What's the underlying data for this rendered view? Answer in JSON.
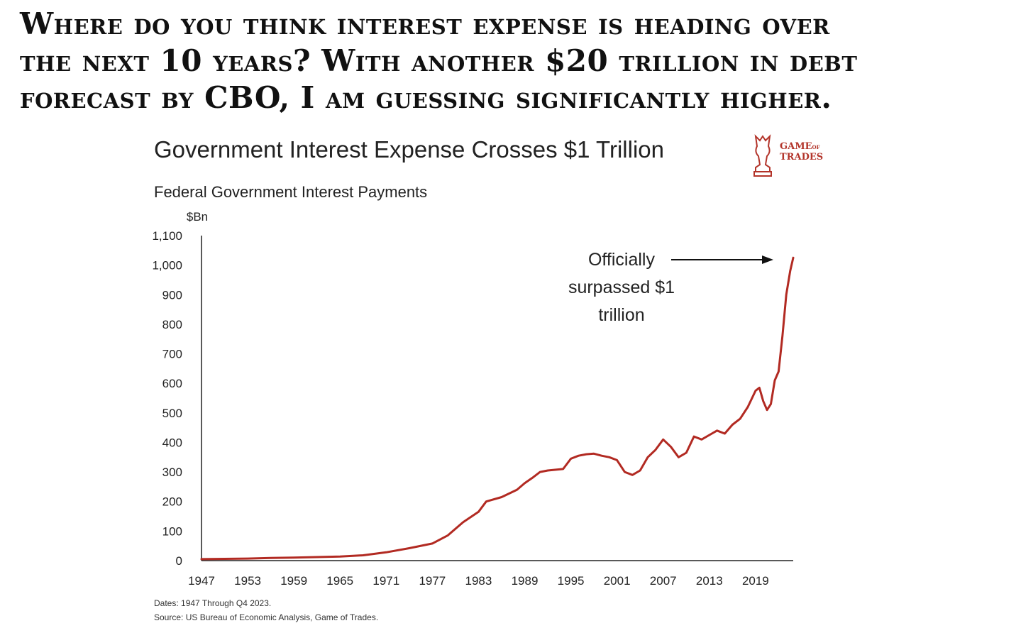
{
  "headline": [
    "Where do you think interest expense is heading over",
    "the next 10 years? With another $20 trillion in debt",
    "forecast by CBO, I am guessing significantly higher."
  ],
  "logo": {
    "line1": "GAME",
    "line1_small": "OF",
    "line2": "TRADES"
  },
  "footnote": {
    "dates": "Dates: 1947 Through Q4 2023.",
    "source": "Source: US Bureau of Economic Analysis, Game of Trades."
  },
  "chart_data": {
    "type": "line",
    "title": "Government Interest Expense Crosses $1 Trillion",
    "subtitle": "Federal Government Interest Payments",
    "ylabel": "$Bn",
    "xlabel": "",
    "ylim": [
      0,
      1100
    ],
    "xlim": [
      1947,
      2023.9
    ],
    "y_ticks": [
      "0",
      "100",
      "200",
      "300",
      "400",
      "500",
      "600",
      "700",
      "800",
      "900",
      "1,000",
      "1,100"
    ],
    "x_ticks": [
      "1947",
      "1953",
      "1959",
      "1965",
      "1971",
      "1977",
      "1983",
      "1989",
      "1995",
      "2001",
      "2007",
      "2013",
      "2019"
    ],
    "grid": false,
    "line_color": "#b22a22",
    "annotation": {
      "lines": [
        "Officially",
        "surpassed $1",
        "trillion"
      ]
    },
    "series": [
      {
        "x": [
          1947,
          1950,
          1953,
          1956,
          1959,
          1962,
          1965,
          1968,
          1971,
          1974,
          1977,
          1979,
          1981,
          1983,
          1984,
          1986,
          1988,
          1989,
          1990,
          1991,
          1992,
          1994,
          1995,
          1996,
          1997,
          1998,
          1999,
          2000,
          2001,
          2002,
          2003,
          2004,
          2005,
          2006,
          2007,
          2008,
          2009,
          2010,
          2011,
          2012,
          2013,
          2014,
          2015,
          2016,
          2017,
          2018,
          2019,
          2019.5,
          2020,
          2020.5,
          2021,
          2021.5,
          2022,
          2022.5,
          2023,
          2023.5,
          2023.9
        ],
        "values": [
          5,
          6,
          7,
          9,
          10,
          12,
          14,
          18,
          28,
          42,
          58,
          85,
          130,
          165,
          200,
          215,
          240,
          262,
          280,
          300,
          305,
          310,
          345,
          355,
          360,
          362,
          355,
          350,
          340,
          300,
          290,
          305,
          350,
          375,
          410,
          385,
          350,
          365,
          420,
          410,
          425,
          440,
          430,
          460,
          480,
          520,
          575,
          585,
          540,
          510,
          530,
          610,
          640,
          760,
          900,
          980,
          1025
        ]
      }
    ]
  }
}
